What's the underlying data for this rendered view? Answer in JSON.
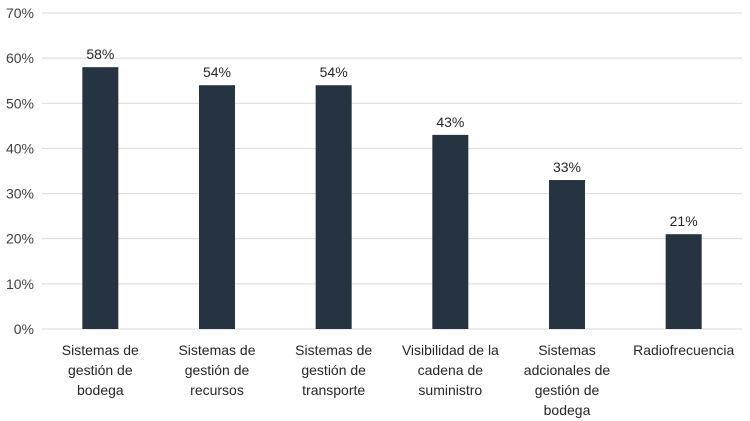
{
  "chart_data": {
    "type": "bar",
    "categories": [
      [
        "Sistemas de",
        "gestión de",
        "bodega"
      ],
      [
        "Sistemas de",
        "gestión de",
        "recursos"
      ],
      [
        "Sistemas de",
        "gestión de",
        "transporte"
      ],
      [
        "Visibilidad de la",
        "cadena de",
        "suministro"
      ],
      [
        "Sistemas",
        "adcionales de",
        "gestión de",
        "bodega"
      ],
      [
        "Radiofrecuencia"
      ]
    ],
    "values": [
      58,
      54,
      54,
      43,
      33,
      21
    ],
    "value_labels": [
      "58%",
      "54%",
      "54%",
      "43%",
      "33%",
      "21%"
    ],
    "ylim": [
      0,
      70
    ],
    "yticks": [
      0,
      10,
      20,
      30,
      40,
      50,
      60,
      70
    ],
    "ytick_labels": [
      "0%",
      "10%",
      "20%",
      "30%",
      "40%",
      "50%",
      "60%",
      "70%"
    ],
    "title": "",
    "xlabel": "",
    "ylabel": "",
    "grid": true,
    "legend": "none",
    "bar_color": "#263341",
    "grid_color": "#d9d9d9"
  }
}
